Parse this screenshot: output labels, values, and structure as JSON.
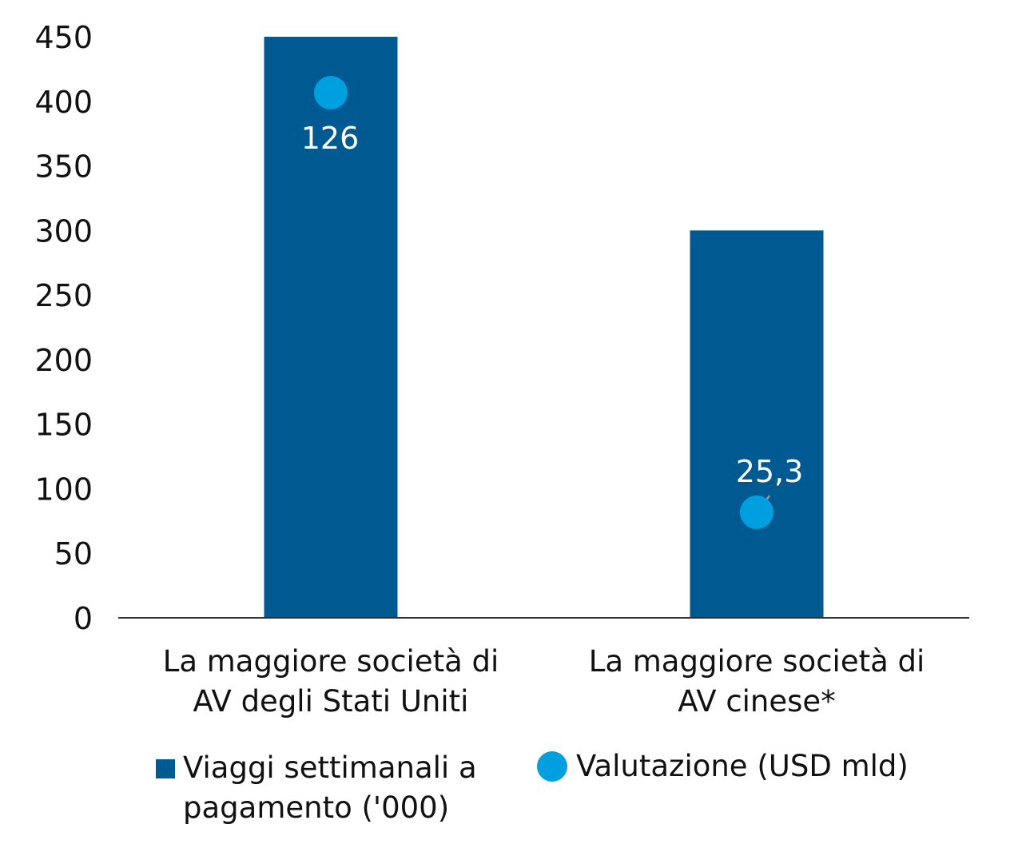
{
  "chart_data": {
    "type": "bar",
    "categories": [
      [
        "La maggiore società di",
        "AV degli Stati Uniti"
      ],
      [
        "La maggiore società di",
        "AV cinese*"
      ]
    ],
    "series": [
      {
        "name": "Viaggi settimanali a pagamento ('000)",
        "kind": "bar",
        "values": [
          450,
          300
        ],
        "color": "#005a92"
      },
      {
        "name": "Valutazione (USD mld)",
        "kind": "point",
        "values": [
          126,
          25.3
        ],
        "data_labels": [
          "126",
          "25,3"
        ],
        "color": "#009fdf"
      }
    ],
    "y_ticks": [
      "0",
      "50",
      "100",
      "150",
      "200",
      "250",
      "300",
      "350",
      "400",
      "450"
    ],
    "ylim": [
      0,
      450
    ],
    "grid": false,
    "legend": {
      "position": "bottom",
      "bar_label_lines": [
        "Viaggi settimanali a",
        "pagamento ('000)"
      ],
      "point_label": "Valutazione (USD mld)"
    }
  }
}
